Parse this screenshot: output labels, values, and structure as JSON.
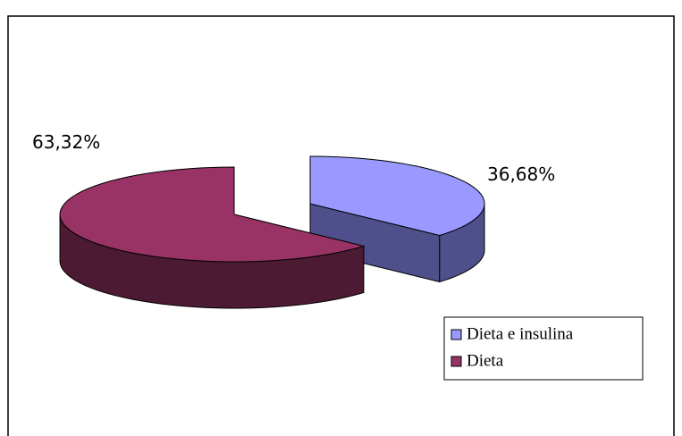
{
  "chart_data": {
    "type": "pie3d",
    "categories": [
      "Dieta e insulina",
      "Dieta"
    ],
    "values": [
      36.68,
      63.32
    ],
    "value_labels": [
      "36,68%",
      "63,32%"
    ],
    "colors": [
      "#9999ff",
      "#993366"
    ],
    "side_colors": [
      "#4f4f8c",
      "#4d1a33"
    ]
  }
}
